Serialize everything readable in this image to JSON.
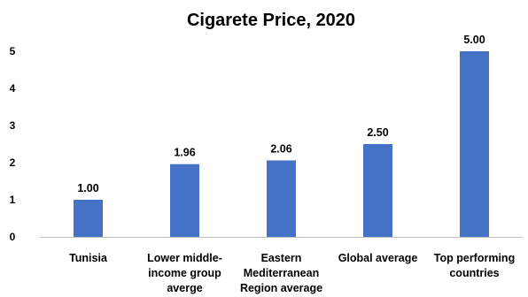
{
  "chart_data": {
    "type": "bar",
    "title": "Cigarete Price, 2020",
    "categories": [
      [
        "Tunisia"
      ],
      [
        "Lower middle-",
        "income group",
        "averge"
      ],
      [
        "Eastern",
        "Mediterranean",
        "Region average"
      ],
      [
        "Global average"
      ],
      [
        "Top performing",
        "countries"
      ]
    ],
    "values": [
      1.0,
      1.96,
      2.06,
      2.5,
      5.0
    ],
    "data_labels": [
      "1.00",
      "1.96",
      "2.06",
      "2.50",
      "5.00"
    ],
    "yticks": [
      "0",
      "1",
      "2",
      "3",
      "4",
      "5"
    ],
    "ylim": [
      0,
      5
    ],
    "bar_color": "#4472c4",
    "grid": false,
    "legend": "none"
  }
}
